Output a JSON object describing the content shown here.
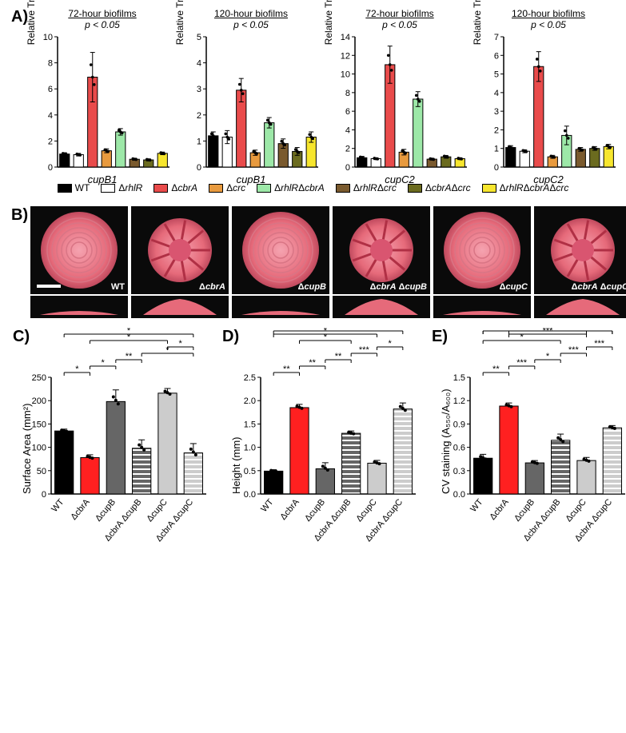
{
  "panelA": {
    "ylabel": "Relative Transcript Level (AU)",
    "strains": [
      "WT",
      "ΔrhlR",
      "ΔcbrA",
      "Δcrc",
      "ΔrhlRΔcbrA",
      "ΔrhlRΔcrc",
      "ΔcbrAΔcrc",
      "ΔrhlRΔcbrAΔcrc"
    ],
    "colors": [
      "#000000",
      "#ffffff",
      "#e94b4b",
      "#e89a3e",
      "#9de8a8",
      "#7a5a2e",
      "#6b6b1f",
      "#f7e62e"
    ],
    "charts": [
      {
        "title": "72-hour biofilms",
        "pval": "p < 0.05",
        "xlabel": "cupB1",
        "ymax": 10,
        "ystep": 2,
        "values": [
          1.0,
          0.95,
          6.9,
          1.25,
          2.7,
          0.6,
          0.55,
          1.05
        ],
        "errors": [
          0.1,
          0.1,
          1.9,
          0.15,
          0.25,
          0.08,
          0.08,
          0.1
        ]
      },
      {
        "title": "120-hour biofilms",
        "pval": "p < 0.05",
        "xlabel": "cupB1",
        "ymax": 5,
        "ystep": 1,
        "values": [
          1.2,
          1.15,
          2.95,
          0.55,
          1.7,
          0.9,
          0.6,
          1.15
        ],
        "errors": [
          0.15,
          0.25,
          0.45,
          0.1,
          0.2,
          0.18,
          0.15,
          0.2
        ]
      },
      {
        "title": "72-hour biofilms",
        "pval": "p < 0.05",
        "xlabel": "cupC2",
        "ymax": 14,
        "ystep": 2,
        "values": [
          1.0,
          0.9,
          11.0,
          1.6,
          7.3,
          0.85,
          1.1,
          0.9
        ],
        "errors": [
          0.15,
          0.1,
          2.0,
          0.3,
          0.8,
          0.1,
          0.15,
          0.1
        ]
      },
      {
        "title": "120-hour biofilms",
        "pval": "p < 0.05",
        "xlabel": "cupC2",
        "ymax": 7,
        "ystep": 1,
        "values": [
          1.05,
          0.85,
          5.4,
          0.55,
          1.7,
          0.95,
          1.0,
          1.1
        ],
        "errors": [
          0.1,
          0.08,
          0.8,
          0.08,
          0.5,
          0.1,
          0.1,
          0.12
        ]
      }
    ]
  },
  "panelB": {
    "labels": [
      "WT",
      "ΔcbrA",
      "ΔcupB",
      "ΔcbrA ΔcupB",
      "ΔcupC",
      "ΔcbrA ΔcupC"
    ],
    "morphology": [
      "flat",
      "ridged",
      "flat",
      "ridged",
      "flat",
      "ridged"
    ],
    "color": "#e66a7a",
    "scalebar_on": 0
  },
  "panelCDE": [
    {
      "label": "C)",
      "ylabel": "Surface Area (mm²)",
      "ymax": 250,
      "ystep": 50,
      "cats": [
        "WT",
        "ΔcbrA",
        "ΔcupB",
        "ΔcbrA ΔcupB",
        "ΔcupC",
        "ΔcbrA ΔcupC"
      ],
      "values": [
        135,
        78,
        198,
        98,
        216,
        88
      ],
      "errors": [
        4,
        6,
        25,
        18,
        10,
        20
      ],
      "fills": [
        "#000000",
        "#ff2020",
        "#666666",
        "hatch-666",
        "#cccccc",
        "hatch-ccc"
      ],
      "sig": [
        [
          0,
          1,
          "*"
        ],
        [
          1,
          2,
          "*"
        ],
        [
          2,
          3,
          "**"
        ],
        [
          3,
          5,
          "*"
        ],
        [
          4,
          5,
          "*"
        ],
        [
          1,
          4,
          "*"
        ],
        [
          0,
          5,
          "*"
        ]
      ]
    },
    {
      "label": "D)",
      "ylabel": "Height (mm)",
      "ymax": 2.5,
      "ystep": 0.5,
      "cats": [
        "WT",
        "ΔcbrA",
        "ΔcupB",
        "ΔcbrA ΔcupB",
        "ΔcupC",
        "ΔcbrA ΔcupC"
      ],
      "values": [
        0.49,
        1.85,
        0.54,
        1.3,
        0.66,
        1.82
      ],
      "errors": [
        0.03,
        0.07,
        0.13,
        0.05,
        0.06,
        0.13
      ],
      "fills": [
        "#000000",
        "#ff2020",
        "#666666",
        "hatch-666",
        "#cccccc",
        "hatch-ccc"
      ],
      "sig": [
        [
          0,
          1,
          "**"
        ],
        [
          1,
          2,
          "**"
        ],
        [
          2,
          3,
          "**"
        ],
        [
          3,
          4,
          "***"
        ],
        [
          4,
          5,
          "*"
        ],
        [
          1,
          3,
          "*"
        ],
        [
          0,
          4,
          "*"
        ],
        [
          0,
          5,
          "*"
        ]
      ]
    },
    {
      "label": "E)",
      "ylabel": "CV staining (A₅₅₀/A₆₀₀)",
      "ymax": 1.5,
      "ystep": 0.3,
      "cats": [
        "WT",
        "ΔcbrA",
        "ΔcupB",
        "ΔcbrA ΔcupB",
        "ΔcupC",
        "ΔcbrA ΔcupC"
      ],
      "values": [
        0.46,
        1.13,
        0.4,
        0.69,
        0.43,
        0.85
      ],
      "errors": [
        0.05,
        0.04,
        0.03,
        0.08,
        0.04,
        0.03
      ],
      "fills": [
        "#000000",
        "#ff2020",
        "#666666",
        "hatch-666",
        "#cccccc",
        "hatch-ccc"
      ],
      "sig": [
        [
          0,
          1,
          "**"
        ],
        [
          1,
          2,
          "***"
        ],
        [
          2,
          3,
          "*"
        ],
        [
          3,
          4,
          "***"
        ],
        [
          4,
          5,
          "***"
        ],
        [
          0,
          3,
          "*"
        ],
        [
          1,
          4,
          "***"
        ],
        [
          0,
          4,
          "*"
        ],
        [
          1,
          5,
          "**"
        ],
        [
          0,
          5,
          "*"
        ]
      ]
    }
  ]
}
